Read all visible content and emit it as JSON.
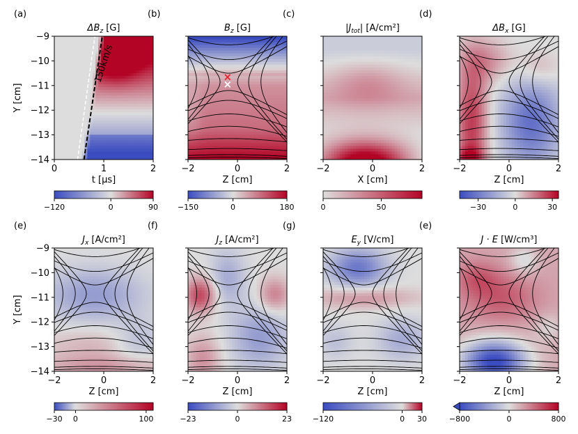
{
  "figure": {
    "description_type": "heatmap_grid",
    "colormap": "coolwarm",
    "colors": {
      "negative": "#3b4cc0",
      "zero": "#dddddd",
      "positive": "#b40426"
    }
  },
  "chart_data": [
    {
      "type": "heatmap",
      "panel": "(a)",
      "title_main": "ΔB",
      "title_sub": "z",
      "title_unit": "  [G]",
      "xlabel": "t [μs]",
      "ylabel": "Y [cm]",
      "xlim": [
        0,
        2
      ],
      "ylim": [
        -14,
        -9
      ],
      "xticks": [
        "0",
        "1",
        "2"
      ],
      "yticks": [
        "−9",
        "−10",
        "−11",
        "−12",
        "−13",
        "−14"
      ],
      "colorbar": {
        "min": -120,
        "max": 90,
        "ticks": [
          -120,
          0,
          90
        ],
        "tick_labels": [
          "−120",
          "0",
          "90"
        ]
      },
      "field_pattern": "time_front",
      "field_lines": false,
      "annotation": {
        "text": "150km/s",
        "front_speed": "150km/s"
      }
    },
    {
      "type": "heatmap",
      "panel": "(b)",
      "title_main": "B",
      "title_sub": "z",
      "title_unit": "  [G]",
      "xlabel": "Z [cm]",
      "ylabel": "",
      "xlim": [
        -2,
        2
      ],
      "ylim": [
        -14,
        -9
      ],
      "xticks": [
        "−2",
        "0",
        "2"
      ],
      "yticks": [],
      "colorbar": {
        "min": -150,
        "max": 180,
        "ticks": [
          -150,
          0,
          180
        ],
        "tick_labels": [
          "−150",
          "0",
          "180"
        ]
      },
      "field_pattern": "bz",
      "field_lines": true,
      "markers": [
        {
          "symbol": "x",
          "color": "#e8202a",
          "x": -0.4,
          "y": -10.65
        },
        {
          "symbol": "x",
          "color": "#ffffff",
          "x": -0.4,
          "y": -10.95
        }
      ]
    },
    {
      "type": "heatmap",
      "panel": "(c)",
      "title_main": "|J",
      "title_sub": "tot",
      "title_unit": "|  [A/cm²]",
      "xlabel": "X [cm]",
      "ylabel": "",
      "xlim": [
        -2,
        2
      ],
      "ylim": [
        -14,
        -9
      ],
      "xticks": [
        "−2",
        "0",
        "2"
      ],
      "yticks": [],
      "colorbar": {
        "min": 0,
        "max": 85,
        "ticks": [
          0,
          50
        ],
        "tick_labels": [
          "0",
          "50"
        ]
      },
      "field_pattern": "jtot",
      "field_lines": false
    },
    {
      "type": "heatmap",
      "panel": "(d)",
      "title_main": "ΔB",
      "title_sub": "x",
      "title_unit": "  [G]",
      "xlabel": "Z [cm]",
      "ylabel": "",
      "xlim": [
        -2,
        2
      ],
      "ylim": [
        -14,
        -9
      ],
      "xticks": [
        "−2",
        "0",
        "2"
      ],
      "yticks": [],
      "colorbar": {
        "min": -45,
        "max": 35,
        "ticks": [
          -30,
          0,
          30
        ],
        "tick_labels": [
          "−30",
          "0",
          "30"
        ]
      },
      "field_pattern": "dbx",
      "field_lines": true
    },
    {
      "type": "heatmap",
      "panel": "(e)",
      "title_main": "J",
      "title_sub": "x",
      "title_unit": "  [A/cm²]",
      "xlabel": "Z [cm]",
      "ylabel": "Y [cm]",
      "xlim": [
        -2,
        2
      ],
      "ylim": [
        -14,
        -9
      ],
      "xticks": [
        "−2",
        "0",
        "2"
      ],
      "yticks": [
        "−9",
        "−10",
        "−11",
        "−12",
        "−13",
        "−14"
      ],
      "colorbar": {
        "min": -30,
        "max": 110,
        "ticks": [
          -30,
          0,
          100
        ],
        "tick_labels": [
          "−30",
          "0",
          "100"
        ]
      },
      "field_pattern": "jx",
      "field_lines": true
    },
    {
      "type": "heatmap",
      "panel": "(f)",
      "title_main": "J",
      "title_sub": "z",
      "title_unit": "  [A/cm²]",
      "xlabel": "Z [cm]",
      "ylabel": "",
      "xlim": [
        -2,
        2
      ],
      "ylim": [
        -14,
        -9
      ],
      "xticks": [
        "−2",
        "0",
        "2"
      ],
      "yticks": [],
      "colorbar": {
        "min": -23,
        "max": 23,
        "ticks": [
          -23,
          0,
          23
        ],
        "tick_labels": [
          "−23",
          "0",
          "23"
        ]
      },
      "field_pattern": "jz",
      "field_lines": true
    },
    {
      "type": "heatmap",
      "panel": "(g)",
      "title_main": "E",
      "title_sub": "y",
      "title_unit": "  [V/cm]",
      "xlabel": "Z [cm]",
      "ylabel": "",
      "xlim": [
        -2,
        2
      ],
      "ylim": [
        -14,
        -9
      ],
      "xticks": [
        "−2",
        "0",
        "2"
      ],
      "yticks": [],
      "colorbar": {
        "min": -120,
        "max": 30,
        "ticks": [
          -120,
          0,
          30
        ],
        "tick_labels": [
          "−120",
          "0",
          "30"
        ]
      },
      "field_pattern": "ey",
      "field_lines": true
    },
    {
      "type": "heatmap",
      "panel": "(e)",
      "title_main": "J · E",
      "title_sub": "",
      "title_unit": "  [W/cm³]",
      "xlabel": "Z [cm]",
      "ylabel": "",
      "xlim": [
        -2,
        2
      ],
      "ylim": [
        -14,
        -9
      ],
      "xticks": [
        "−2",
        "0",
        "2"
      ],
      "yticks": [],
      "colorbar": {
        "min": -800,
        "max": 800,
        "ticks": [
          -800,
          0,
          800
        ],
        "tick_labels": [
          "−800",
          "0",
          "800"
        ],
        "extend": "min"
      },
      "field_pattern": "je",
      "field_lines": true
    }
  ]
}
